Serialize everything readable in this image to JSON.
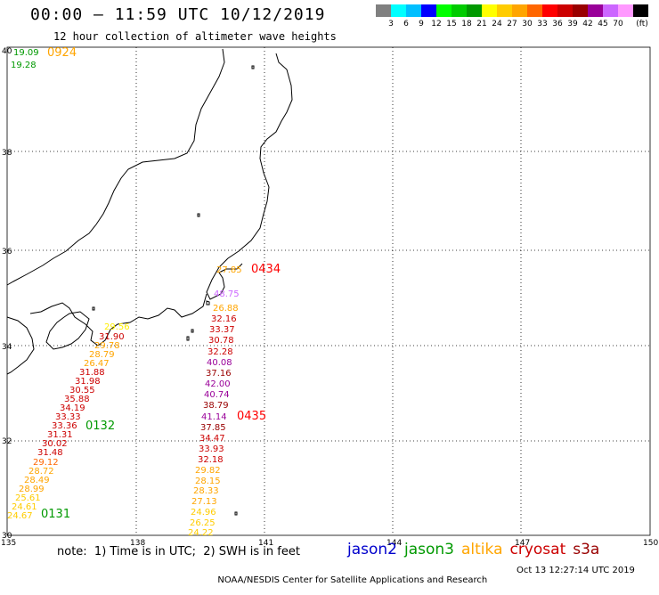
{
  "title": "00:00 – 11:59 UTC 10/12/2019",
  "subtitle": "12 hour collection of altimeter wave heights",
  "colorbar": {
    "unit_label": "(ft)",
    "items": [
      {
        "color": "#808080",
        "label": ""
      },
      {
        "color": "#00ffff",
        "label": "3"
      },
      {
        "color": "#00bfff",
        "label": "6"
      },
      {
        "color": "#0000ff",
        "label": "9"
      },
      {
        "color": "#00ff00",
        "label": "12"
      },
      {
        "color": "#00cc00",
        "label": "15"
      },
      {
        "color": "#009900",
        "label": "18"
      },
      {
        "color": "#ffff00",
        "label": "21"
      },
      {
        "color": "#ffcc00",
        "label": "24"
      },
      {
        "color": "#ffa500",
        "label": "27"
      },
      {
        "color": "#ff6600",
        "label": "30"
      },
      {
        "color": "#ff0000",
        "label": "33"
      },
      {
        "color": "#cc0000",
        "label": "36"
      },
      {
        "color": "#990000",
        "label": "39"
      },
      {
        "color": "#990099",
        "label": "42"
      },
      {
        "color": "#cc66ff",
        "label": "45"
      },
      {
        "color": "#ff99ff",
        "label": "70"
      },
      {
        "color": "#000000",
        "label": ""
      }
    ]
  },
  "axes": {
    "lon_ticks": [
      "135",
      "138",
      "141",
      "144",
      "147",
      "150"
    ],
    "lat_ticks": [
      "40",
      "38",
      "36",
      "34",
      "32",
      "30"
    ]
  },
  "observations": {
    "topleft_1": {
      "value": "19.09",
      "color": "#009900"
    },
    "topleft_2": {
      "value": "19.28",
      "color": "#009900"
    },
    "track_sw": [
      {
        "value": "29.56",
        "color": "#ffee00"
      },
      {
        "value": "31.90",
        "color": "#cc0000"
      },
      {
        "value": "29.78",
        "color": "#ffa500"
      },
      {
        "value": "28.79",
        "color": "#ffa500"
      },
      {
        "value": "26.47",
        "color": "#ffa500"
      },
      {
        "value": "31.88",
        "color": "#cc0000"
      },
      {
        "value": "31.98",
        "color": "#cc0000"
      },
      {
        "value": "30.55",
        "color": "#cc0000"
      },
      {
        "value": "35.88",
        "color": "#cc0000"
      },
      {
        "value": "34.19",
        "color": "#cc0000"
      },
      {
        "value": "33.33",
        "color": "#cc0000"
      },
      {
        "value": "33.36",
        "color": "#cc0000"
      },
      {
        "value": "31.31",
        "color": "#cc0000"
      },
      {
        "value": "30.02",
        "color": "#cc0000"
      },
      {
        "value": "31.48",
        "color": "#cc0000"
      },
      {
        "value": "29.12",
        "color": "#ff6600"
      },
      {
        "value": "28.72",
        "color": "#ffa500"
      },
      {
        "value": "28.49",
        "color": "#ffa500"
      },
      {
        "value": "28.99",
        "color": "#ffa500"
      },
      {
        "value": "25.61",
        "color": "#ffcc00"
      },
      {
        "value": "24.61",
        "color": "#ffcc00"
      },
      {
        "value": "24.67",
        "color": "#ffcc00"
      }
    ],
    "track_e": [
      {
        "value": "27.85",
        "color": "#ffa500"
      },
      {
        "value": "48.75",
        "color": "#cc66ff"
      },
      {
        "value": "26.88",
        "color": "#ffa500"
      },
      {
        "value": "32.16",
        "color": "#cc0000"
      },
      {
        "value": "33.37",
        "color": "#cc0000"
      },
      {
        "value": "30.78",
        "color": "#cc0000"
      },
      {
        "value": "32.28",
        "color": "#cc0000"
      },
      {
        "value": "40.08",
        "color": "#990099"
      },
      {
        "value": "37.16",
        "color": "#990000"
      },
      {
        "value": "42.00",
        "color": "#990099"
      },
      {
        "value": "40.74",
        "color": "#990099"
      },
      {
        "value": "38.79",
        "color": "#990000"
      },
      {
        "value": "41.14",
        "color": "#990099"
      },
      {
        "value": "37.85",
        "color": "#990000"
      },
      {
        "value": "34.47",
        "color": "#cc0000"
      },
      {
        "value": "33.93",
        "color": "#cc0000"
      },
      {
        "value": "32.18",
        "color": "#cc0000"
      },
      {
        "value": "29.82",
        "color": "#ffa500"
      },
      {
        "value": "28.15",
        "color": "#ffa500"
      },
      {
        "value": "28.33",
        "color": "#ffa500"
      },
      {
        "value": "27.13",
        "color": "#ffa500"
      },
      {
        "value": "24.96",
        "color": "#ffcc00"
      },
      {
        "value": "26.25",
        "color": "#ffcc00"
      },
      {
        "value": "24.22",
        "color": "#ffcc00"
      }
    ]
  },
  "times": {
    "t0924": {
      "label": "0924",
      "color": "#ffa500"
    },
    "t0434": {
      "label": "0434",
      "color": "#ff0000"
    },
    "t0435": {
      "label": "0435",
      "color": "#ff0000"
    },
    "t0132": {
      "label": "0132",
      "color": "#009900"
    },
    "t0131": {
      "label": "0131",
      "color": "#009900"
    }
  },
  "note": "note:  1) Time is in UTC;  2) SWH is in feet",
  "legend": [
    {
      "name": "jason2",
      "color": "#0000cc"
    },
    {
      "name": "jason3",
      "color": "#009900"
    },
    {
      "name": "altika",
      "color": "#ffa500"
    },
    {
      "name": "cryosat",
      "color": "#cc0000"
    },
    {
      "name": "s3a",
      "color": "#990000"
    }
  ],
  "credit": "NOAA/NESDIS Center for Satellite Applications and Research",
  "timestamp": "Oct 13 12:27:14 UTC 2019"
}
